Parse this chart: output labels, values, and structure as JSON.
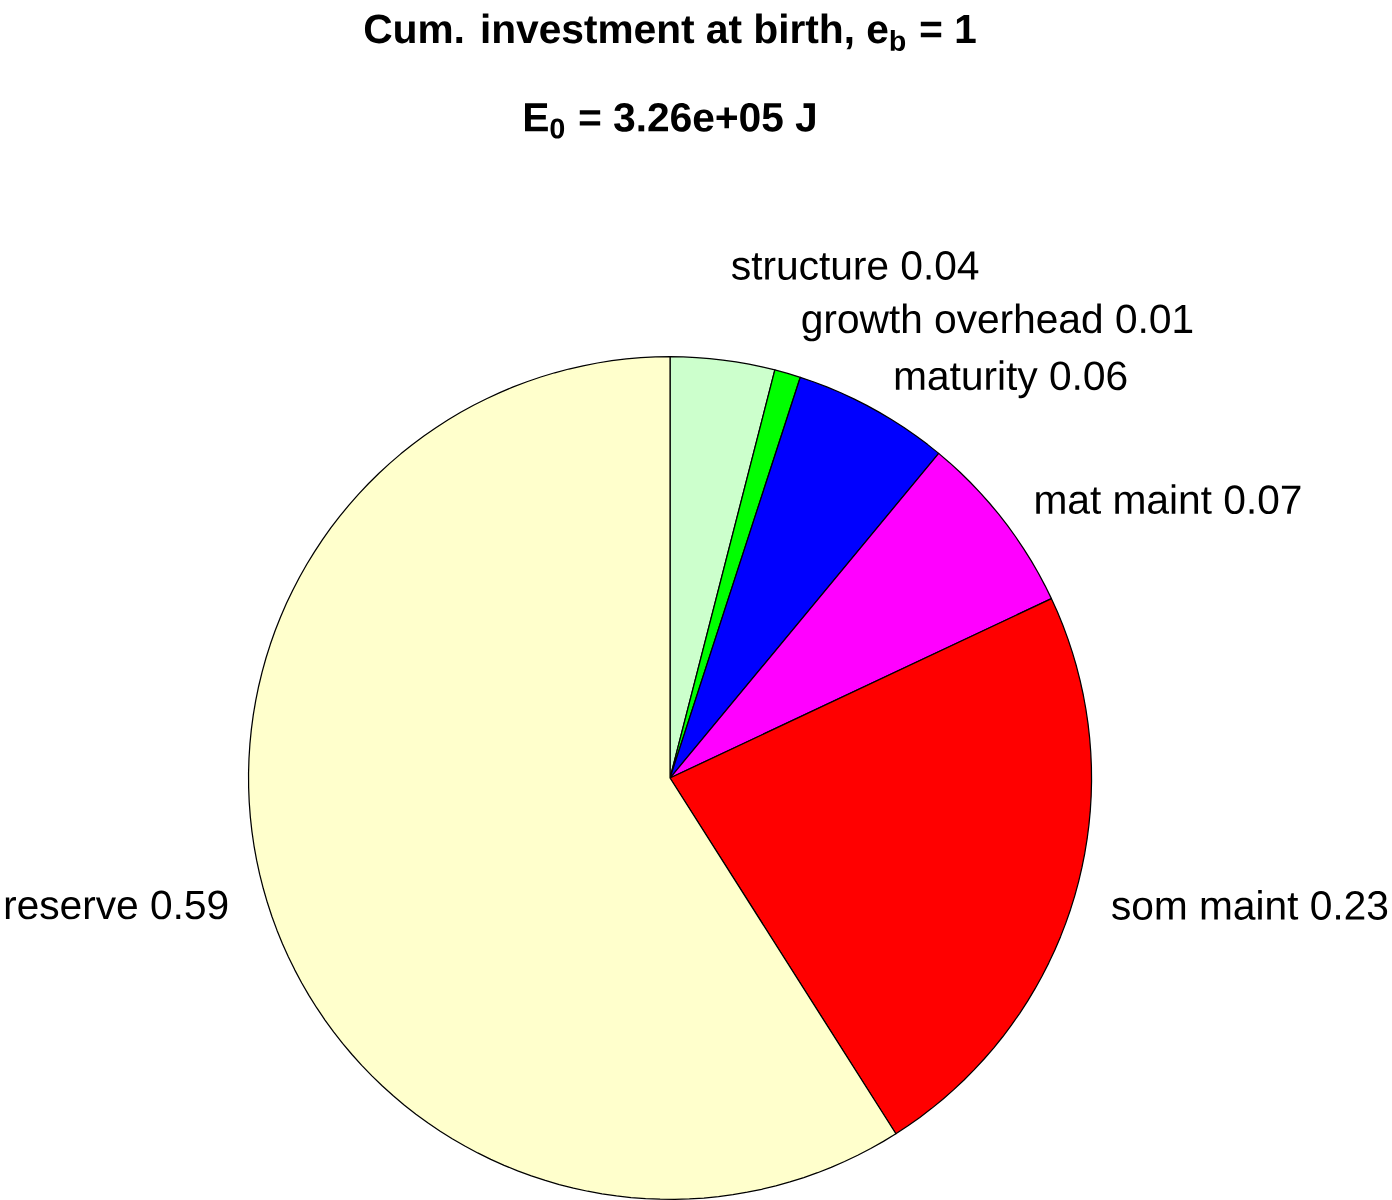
{
  "chart_data": {
    "type": "pie",
    "title": "Cum. investment at birth, e$_{b}$ = 1",
    "subtitle": "E$_{0}$ = 3.26e+05 J",
    "categories": [
      "structure",
      "growth overhead",
      "maturity",
      "mat maint",
      "som maint",
      "reserve"
    ],
    "values": [
      0.04,
      0.01,
      0.06,
      0.07,
      0.23,
      0.59
    ],
    "colors": [
      "#ccffcc",
      "#00ff00",
      "#0000ff",
      "#ff00ff",
      "#ff0000",
      "#ffffcc"
    ],
    "data_labels": true
  }
}
